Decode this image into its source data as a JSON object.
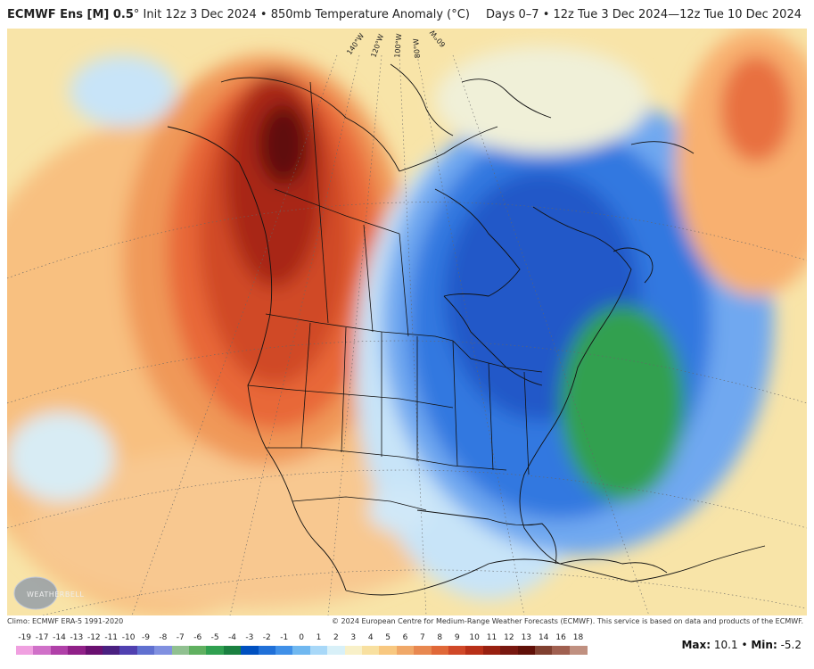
{
  "header": {
    "model": "ECMWF Ens [M] 0.5",
    "degree_symbol": "°",
    "init_text": "Init 12z 3 Dec 2024",
    "bullet": "•",
    "field": "850mb Temperature Anomaly (°C)",
    "valid_range": "Days 0–7 • 12z Tue 3 Dec 2024—12z Tue 10 Dec 2024"
  },
  "map": {
    "longitude_labels": [
      "140°W",
      "120°W",
      "100°W",
      "80°W",
      "60°W"
    ],
    "logo_text": "WEATHERBELL"
  },
  "footer": {
    "climo": "Climo: ECMWF ERA-5 1991-2020",
    "copyright": "© 2024 European Centre for Medium-Range Weather Forecasts (ECMWF). This service is based on data and products of the ECMWF.",
    "max_label": "Max:",
    "max_value": "10.1",
    "separator": "•",
    "min_label": "Min:",
    "min_value": "-5.2"
  },
  "colorbar": {
    "labels": [
      "-19",
      "-17",
      "-14",
      "-13",
      "-12",
      "-11",
      "-10",
      "-9",
      "-8",
      "-7",
      "-6",
      "-5",
      "-4",
      "-3",
      "-2",
      "-1",
      "0",
      "1",
      "2",
      "3",
      "4",
      "5",
      "6",
      "7",
      "8",
      "9",
      "10",
      "11",
      "12",
      "13",
      "14",
      "16",
      "18"
    ],
    "colors": [
      "#f0a0e0",
      "#d070c8",
      "#b040a8",
      "#902088",
      "#6a1070",
      "#4a2080",
      "#5040b0",
      "#6070d0",
      "#8090e0",
      "#90c090",
      "#60b060",
      "#30a050",
      "#1a8040",
      "#0050c0",
      "#2070d8",
      "#4090e8",
      "#70b8f0",
      "#a8d8f8",
      "#d8f0f8",
      "#f8f0c8",
      "#f8e0a0",
      "#f8c880",
      "#f0a868",
      "#e88850",
      "#e06838",
      "#d04828",
      "#b83018",
      "#982010",
      "#781810",
      "#601008",
      "#804030",
      "#a06050",
      "#c09080"
    ]
  },
  "colors": {
    "warm_strong": "#c83010",
    "warm_mid": "#e86838",
    "warm_light": "#f8c080",
    "neutral": "#f8f0c8",
    "cool_light": "#c0e0f8",
    "cool_mid": "#4090e8",
    "cool_strong": "#2050c8",
    "green_anom": "#30a050"
  }
}
